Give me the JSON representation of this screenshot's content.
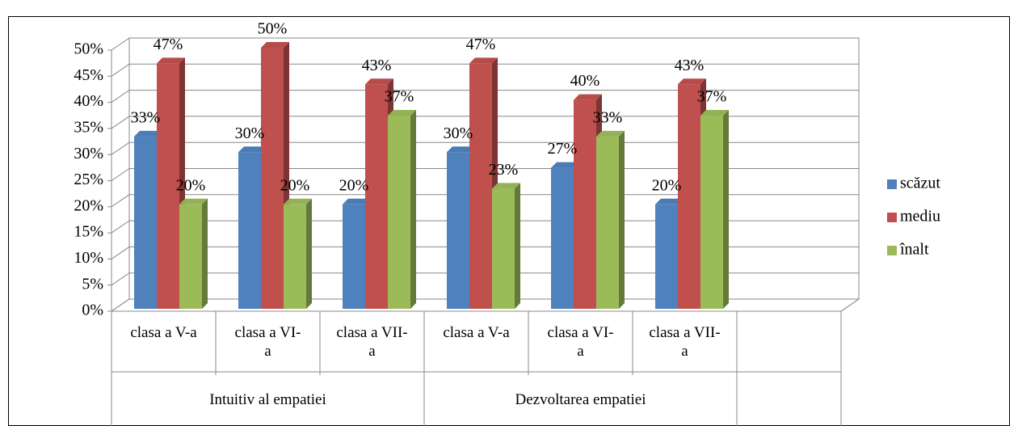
{
  "chart_data": {
    "type": "bar3d",
    "categories": [
      "clasa a V-a",
      "clasa a VI-\na",
      "clasa a VII-\na",
      "clasa a V-a",
      "clasa a VI-\na",
      "clasa a VII-\na"
    ],
    "groups": [
      {
        "label": "Intuitiv al empatiei",
        "span": 3
      },
      {
        "label": "Dezvoltarea empatiei",
        "span": 3
      }
    ],
    "series": [
      {
        "name": "scăzut",
        "color": "#4f81bd",
        "values": [
          33,
          30,
          20,
          30,
          27,
          20
        ],
        "value_labels": [
          "33%",
          "30%",
          "20%",
          "30%",
          "27%",
          "20%"
        ]
      },
      {
        "name": "mediu",
        "color": "#c0504d",
        "values": [
          47,
          50,
          43,
          47,
          40,
          43
        ],
        "value_labels": [
          "47%",
          "50%",
          "43%",
          "47%",
          "40%",
          "43%"
        ]
      },
      {
        "name": "înalt",
        "color": "#9bbb59",
        "values": [
          20,
          20,
          37,
          23,
          33,
          37
        ],
        "value_labels": [
          "20%",
          "20%",
          "37%",
          "23%",
          "33%",
          "37%"
        ]
      }
    ],
    "ylim": [
      0,
      50
    ],
    "yticks": [
      {
        "value": 0,
        "label": "0%"
      },
      {
        "value": 5,
        "label": "5%"
      },
      {
        "value": 10,
        "label": "10%"
      },
      {
        "value": 15,
        "label": "15%"
      },
      {
        "value": 20,
        "label": "20%"
      },
      {
        "value": 25,
        "label": "25%"
      },
      {
        "value": 30,
        "label": "30%"
      },
      {
        "value": 35,
        "label": "35%"
      },
      {
        "value": 40,
        "label": "40%"
      },
      {
        "value": 45,
        "label": "45%"
      },
      {
        "value": 50,
        "label": "50%"
      }
    ],
    "grid": true,
    "legend": "right"
  }
}
